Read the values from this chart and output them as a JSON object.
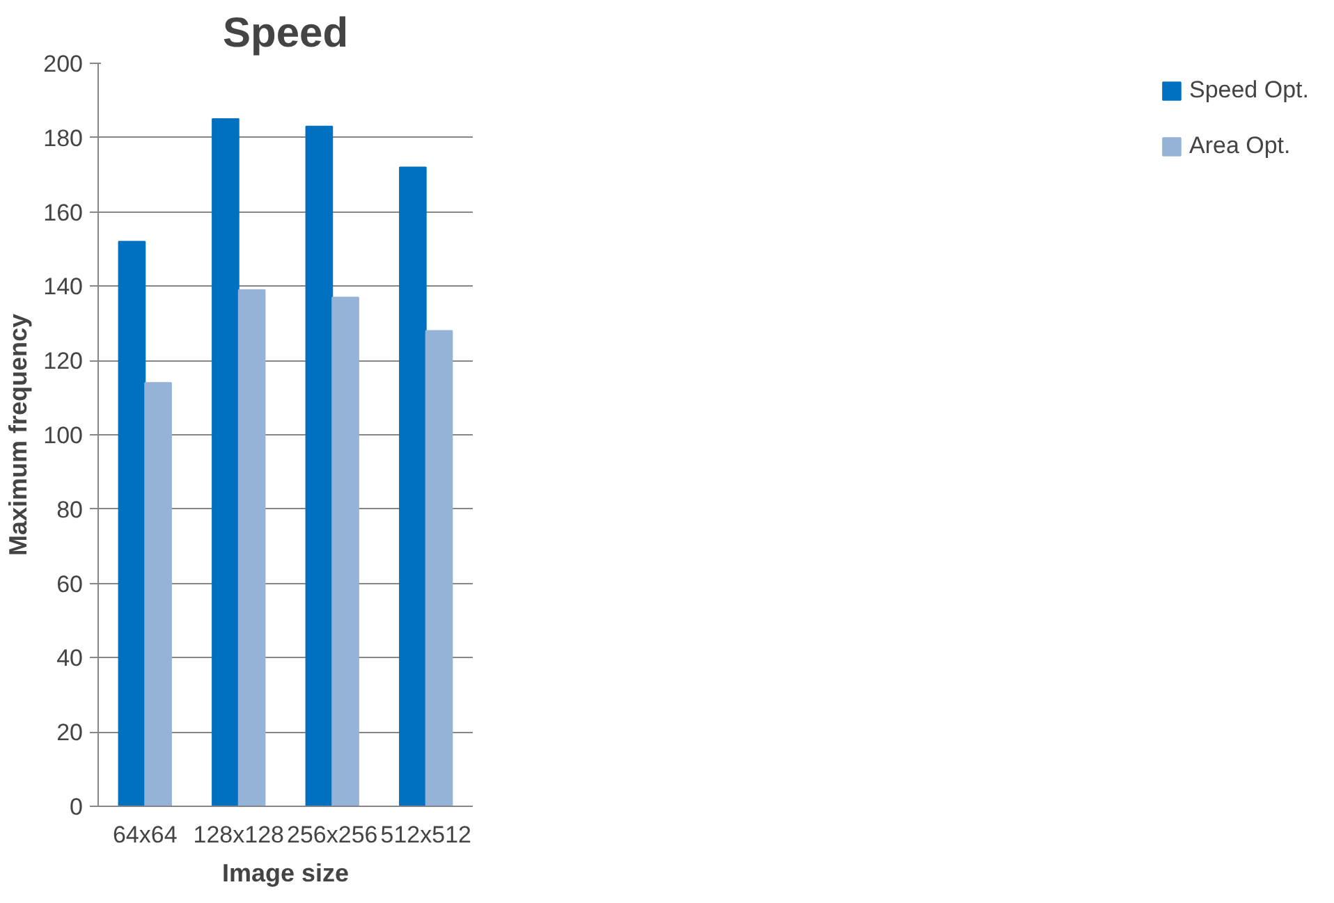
{
  "chart_data": {
    "type": "bar",
    "title": "Speed",
    "xlabel": "Image size",
    "ylabel": "Maximum frequency",
    "categories": [
      "64x64",
      "128x128",
      "256x256",
      "512x512"
    ],
    "series": [
      {
        "name": "Speed Opt.",
        "color": "#0070c0",
        "values": [
          152,
          185,
          183,
          172
        ]
      },
      {
        "name": "Area Opt.",
        "color": "#95b3d7",
        "values": [
          114,
          139,
          137,
          128
        ]
      }
    ],
    "ylim": [
      0,
      200
    ],
    "yticks": [
      0,
      20,
      40,
      60,
      80,
      100,
      120,
      140,
      160,
      180,
      200
    ],
    "grid": "y",
    "legend": "right"
  }
}
